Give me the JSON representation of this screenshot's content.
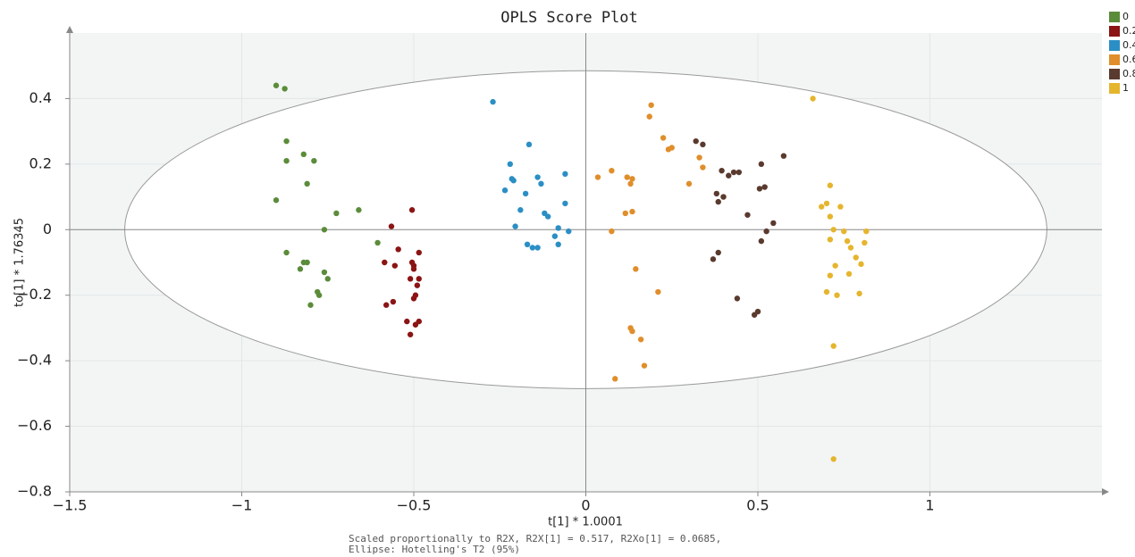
{
  "chart_data": {
    "type": "scatter",
    "title": "OPLS Score Plot",
    "x_label": "t[1] * 1.0001",
    "y_label": "to[1] * 1.76345",
    "footnote": [
      "Scaled proportionally to R2X, R2X[1] = 0.517, R2Xo[1] = 0.0685,",
      "Ellipse: Hotelling's T2 (95%)"
    ],
    "xlim": [
      -1.5,
      1.5
    ],
    "ylim": [
      -0.8,
      0.6
    ],
    "xticks": [
      {
        "value": -1.5,
        "label": "−1.5"
      },
      {
        "value": -1,
        "label": "−1"
      },
      {
        "value": -0.5,
        "label": "−0.5"
      },
      0,
      0.5,
      1
    ],
    "yticks": [
      0.4,
      0.2,
      0,
      {
        "value": -0.2,
        "label": "−0.2"
      },
      {
        "value": -0.4,
        "label": "−0.4"
      },
      {
        "value": -0.6,
        "label": "−0.6"
      },
      {
        "value": -0.8,
        "label": "−0.8"
      }
    ],
    "grid": true,
    "legend": "top-right",
    "ellipse": {
      "rx": 1.34,
      "ry": 0.485
    },
    "series": [
      {
        "name": "0",
        "color": "#5b8c3a",
        "x": [
          -0.9,
          -0.875,
          -0.87,
          -0.87,
          -0.82,
          -0.79,
          -0.81,
          -0.9,
          -0.725,
          -0.66,
          -0.76,
          -0.605,
          -0.87,
          -0.82,
          -0.81,
          -0.76,
          -0.75,
          -0.83,
          -0.78,
          -0.775,
          -0.8
        ],
        "values": [
          0.44,
          0.43,
          0.27,
          0.21,
          0.23,
          0.21,
          0.14,
          0.09,
          0.05,
          0.06,
          0,
          -0.04,
          -0.07,
          -0.1,
          -0.1,
          -0.13,
          -0.15,
          -0.12,
          -0.19,
          -0.2,
          -0.23
        ]
      },
      {
        "name": "0.2",
        "color": "#8b1414",
        "x": [
          -0.565,
          -0.505,
          -0.545,
          -0.585,
          -0.555,
          -0.485,
          -0.505,
          -0.5,
          -0.5,
          -0.51,
          -0.485,
          -0.49,
          -0.495,
          -0.5,
          -0.56,
          -0.58,
          -0.52,
          -0.485,
          -0.495,
          -0.51
        ],
        "values": [
          0.01,
          0.06,
          -0.06,
          -0.1,
          -0.11,
          -0.07,
          -0.1,
          -0.11,
          -0.12,
          -0.15,
          -0.15,
          -0.17,
          -0.2,
          -0.21,
          -0.22,
          -0.23,
          -0.28,
          -0.28,
          -0.29,
          -0.32
        ]
      },
      {
        "name": "0.4",
        "color": "#2b8fc5",
        "x": [
          -0.27,
          -0.165,
          -0.22,
          -0.21,
          -0.215,
          -0.14,
          -0.06,
          -0.13,
          -0.235,
          -0.175,
          -0.06,
          -0.19,
          -0.12,
          -0.11,
          -0.205,
          -0.08,
          -0.05,
          -0.09,
          -0.17,
          -0.155,
          -0.14,
          -0.08
        ],
        "values": [
          0.39,
          0.26,
          0.2,
          0.15,
          0.155,
          0.16,
          0.17,
          0.14,
          0.12,
          0.11,
          0.08,
          0.06,
          0.05,
          0.04,
          0.01,
          0.005,
          -0.005,
          -0.02,
          -0.045,
          -0.055,
          -0.055,
          -0.045
        ]
      },
      {
        "name": "0.6",
        "color": "#e08e2b",
        "x": [
          0.19,
          0.185,
          0.225,
          0.25,
          0.24,
          0.33,
          0.34,
          0.3,
          0.075,
          0.035,
          0.12,
          0.135,
          0.13,
          0.135,
          0.115,
          0.075,
          0.145,
          0.21,
          0.13,
          0.135,
          0.16,
          0.17,
          0.085
        ],
        "values": [
          0.38,
          0.345,
          0.28,
          0.25,
          0.245,
          0.22,
          0.19,
          0.14,
          0.18,
          0.16,
          0.16,
          0.155,
          0.14,
          0.055,
          0.05,
          -0.005,
          -0.12,
          -0.19,
          -0.3,
          -0.31,
          -0.335,
          -0.415,
          -0.455
        ]
      },
      {
        "name": "0.8",
        "color": "#5a3a2e",
        "x": [
          0.32,
          0.34,
          0.395,
          0.43,
          0.415,
          0.445,
          0.51,
          0.575,
          0.505,
          0.52,
          0.38,
          0.4,
          0.385,
          0.47,
          0.545,
          0.525,
          0.51,
          0.385,
          0.37,
          0.44,
          0.5,
          0.49
        ],
        "values": [
          0.27,
          0.26,
          0.18,
          0.175,
          0.165,
          0.175,
          0.2,
          0.225,
          0.125,
          0.13,
          0.11,
          0.1,
          0.085,
          0.045,
          0.02,
          -0.005,
          -0.035,
          -0.07,
          -0.09,
          -0.21,
          -0.25,
          -0.26
        ]
      },
      {
        "name": "1",
        "color": "#e6b52e",
        "x": [
          0.71,
          0.7,
          0.685,
          0.74,
          0.71,
          0.72,
          0.75,
          0.815,
          0.71,
          0.76,
          0.81,
          0.77,
          0.785,
          0.8,
          0.725,
          0.71,
          0.765,
          0.7,
          0.73,
          0.795,
          0.72,
          0.72,
          0.66
        ],
        "values": [
          0.135,
          0.08,
          0.07,
          0.07,
          0.04,
          0,
          -0.005,
          -0.005,
          -0.03,
          -0.035,
          -0.04,
          -0.055,
          -0.085,
          -0.105,
          -0.11,
          -0.14,
          -0.135,
          -0.19,
          -0.2,
          -0.195,
          -0.355,
          -0.7,
          0.4
        ]
      }
    ]
  }
}
